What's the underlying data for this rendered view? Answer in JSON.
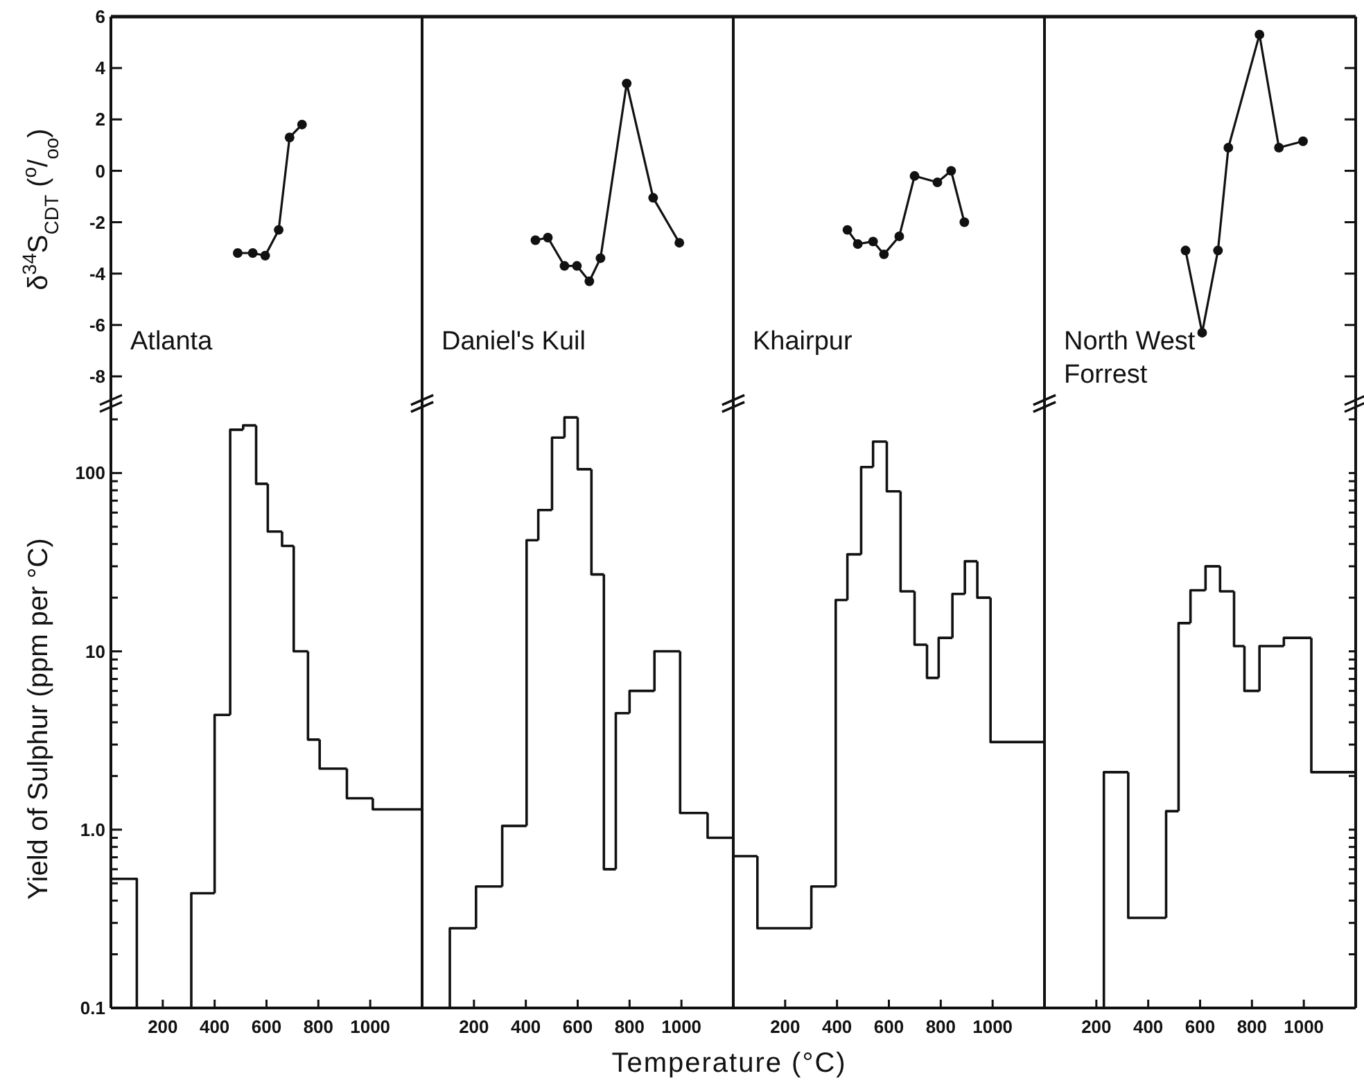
{
  "chart_data": [
    {
      "type": "line",
      "title": "Atlanta",
      "ylabel": "δ$^{34}$S$_{CDT}$  ($^{o}$/$_{oo}$)",
      "x": [
        489,
        547,
        595,
        647,
        689,
        737
      ],
      "values": [
        -3.2,
        -3.2,
        -3.3,
        -2.3,
        1.3,
        1.8
      ],
      "xlim": [
        0,
        1200
      ],
      "ylim": [
        -9,
        6
      ],
      "yticks": [
        -8,
        -6,
        -4,
        -2,
        0,
        2,
        4,
        6
      ],
      "tick_labels": "y",
      "marker": "circle",
      "line_style": "solid"
    },
    {
      "type": "line",
      "title": "Daniel's Kuil",
      "x": [
        437,
        485,
        549,
        597,
        645,
        688,
        789,
        891,
        992
      ],
      "values": [
        -2.7,
        -2.6,
        -3.7,
        -3.7,
        -4.3,
        -3.4,
        3.4,
        -1.05,
        -2.8
      ],
      "xlim": [
        0,
        1200
      ],
      "ylim": [
        -9,
        6
      ],
      "tick_labels": false,
      "marker": "circle",
      "line_style": "solid"
    },
    {
      "type": "line",
      "title": "Khairpur",
      "x": [
        440,
        480,
        539,
        581,
        640,
        699,
        787,
        840,
        891
      ],
      "values": [
        -2.3,
        -2.85,
        -2.75,
        -3.25,
        -2.55,
        -0.2,
        -0.45,
        0,
        -2.0
      ],
      "xlim": [
        0,
        1200
      ],
      "ylim": [
        -9,
        6
      ],
      "tick_labels": false,
      "marker": "circle",
      "line_style": "solid"
    },
    {
      "type": "line",
      "title": "North West Forrest",
      "x": [
        544,
        608,
        669,
        709,
        829,
        904,
        997
      ],
      "values": [
        -3.1,
        -6.3,
        -3.1,
        0.9,
        5.3,
        0.9,
        1.15
      ],
      "xlim": [
        0,
        1200
      ],
      "ylim": [
        -9,
        6
      ],
      "yticks": [
        -8,
        -6,
        -4,
        -2,
        0,
        2,
        4,
        6
      ],
      "tick_labels": false,
      "marker": "circle",
      "line_style": "solid"
    },
    {
      "type": "histogram",
      "ylabel": "Yield of Sulphur (ppm per °C)",
      "bins": [
        0,
        100,
        310,
        400,
        460,
        510,
        560,
        605,
        660,
        705,
        760,
        805,
        910,
        1010,
        1200
      ],
      "values": [
        0.53,
        null,
        0.44,
        4.4,
        175,
        185,
        87,
        47,
        39,
        10,
        3.2,
        2.2,
        1.5,
        1.3
      ],
      "xlim": [
        0,
        1200
      ],
      "ylim": [
        0.1,
        250
      ],
      "log": true,
      "xticks": [
        200,
        400,
        600,
        800,
        1000
      ],
      "yticks": [
        0.1,
        {
          "value": 0.2,
          "label": null
        },
        {
          "value": 0.3,
          "label": null
        },
        {
          "value": 0.4,
          "label": null
        },
        {
          "value": 0.5,
          "label": null
        },
        {
          "value": 0.6,
          "label": null
        },
        {
          "value": 0.7,
          "label": null
        },
        {
          "value": 0.8,
          "label": null
        },
        {
          "value": 0.9,
          "label": null
        },
        {
          "value": 1,
          "label": "1.0"
        },
        {
          "value": 2,
          "label": null
        },
        {
          "value": 3,
          "label": null
        },
        {
          "value": 4,
          "label": null
        },
        {
          "value": 5,
          "label": null
        },
        {
          "value": 6,
          "label": null
        },
        {
          "value": 7,
          "label": null
        },
        {
          "value": 8,
          "label": null
        },
        {
          "value": 9,
          "label": null
        },
        10,
        {
          "value": 20,
          "label": null
        },
        {
          "value": 30,
          "label": null
        },
        {
          "value": 40,
          "label": null
        },
        {
          "value": 50,
          "label": null
        },
        {
          "value": 60,
          "label": null
        },
        {
          "value": 70,
          "label": null
        },
        {
          "value": 80,
          "label": null
        },
        {
          "value": 90,
          "label": null
        },
        100,
        {
          "value": 200,
          "label": null
        }
      ]
    },
    {
      "type": "histogram",
      "xlabel": "Temperature (°C)",
      "bins": [
        107,
        208,
        309,
        403,
        448,
        501,
        549,
        600,
        653,
        701,
        747,
        800,
        896,
        995,
        1101,
        1200
      ],
      "values": [
        0.28,
        0.48,
        1.05,
        42,
        62,
        158,
        205,
        105,
        27,
        0.6,
        4.5,
        6.0,
        10,
        1.24,
        0.9
      ],
      "xlim": [
        0,
        1200
      ],
      "ylim": [
        0.1,
        250
      ],
      "log": true,
      "xticks": [
        200,
        400,
        600,
        800,
        1000
      ],
      "tick_labels": "x"
    },
    {
      "type": "histogram",
      "bins": [
        0,
        93,
        301,
        395,
        440,
        493,
        539,
        592,
        645,
        699,
        747,
        792,
        845,
        893,
        941,
        992,
        1200
      ],
      "values": [
        0.71,
        0.28,
        0.48,
        19.4,
        35,
        108,
        150,
        79,
        21.7,
        10.9,
        7.1,
        11.9,
        21,
        32,
        20,
        3.1
      ],
      "xlim": [
        0,
        1200
      ],
      "ylim": [
        0.1,
        250
      ],
      "log": true,
      "xticks": [
        200,
        400,
        600,
        800,
        1000
      ],
      "tick_labels": "x"
    },
    {
      "type": "histogram",
      "bins": [
        229,
        323,
        469,
        517,
        563,
        621,
        677,
        731,
        771,
        829,
        923,
        1029,
        1200
      ],
      "values": [
        2.1,
        0.32,
        1.27,
        14.4,
        22,
        30,
        21.7,
        10.7,
        6.0,
        10.7,
        11.9,
        2.1
      ],
      "xlim": [
        0,
        1200
      ],
      "ylim": [
        0.1,
        250
      ],
      "log": true,
      "xticks": [
        200,
        400,
        600,
        800,
        1000
      ],
      "yticks": [
        {
          "value": 0.2,
          "label": null
        },
        {
          "value": 0.3,
          "label": null
        },
        {
          "value": 0.4,
          "label": null
        },
        {
          "value": 0.5,
          "label": null
        },
        {
          "value": 0.6,
          "label": null
        },
        {
          "value": 0.7,
          "label": null
        },
        {
          "value": 0.8,
          "label": null
        },
        {
          "value": 0.9,
          "label": null
        },
        {
          "value": 1,
          "label": null
        },
        {
          "value": 2,
          "label": null
        },
        {
          "value": 3,
          "label": null
        },
        {
          "value": 4,
          "label": null
        },
        {
          "value": 5,
          "label": null
        },
        {
          "value": 6,
          "label": null
        },
        {
          "value": 7,
          "label": null
        },
        {
          "value": 8,
          "label": null
        },
        {
          "value": 9,
          "label": null
        },
        {
          "value": 10,
          "label": null
        },
        {
          "value": 20,
          "label": null
        },
        {
          "value": 30,
          "label": null
        },
        {
          "value": 40,
          "label": null
        },
        {
          "value": 50,
          "label": null
        },
        {
          "value": 60,
          "label": null
        },
        {
          "value": 70,
          "label": null
        },
        {
          "value": 80,
          "label": null
        },
        {
          "value": 90,
          "label": null
        },
        {
          "value": 100,
          "label": null
        },
        {
          "value": 200,
          "label": null
        }
      ],
      "tick_labels": "x"
    }
  ]
}
